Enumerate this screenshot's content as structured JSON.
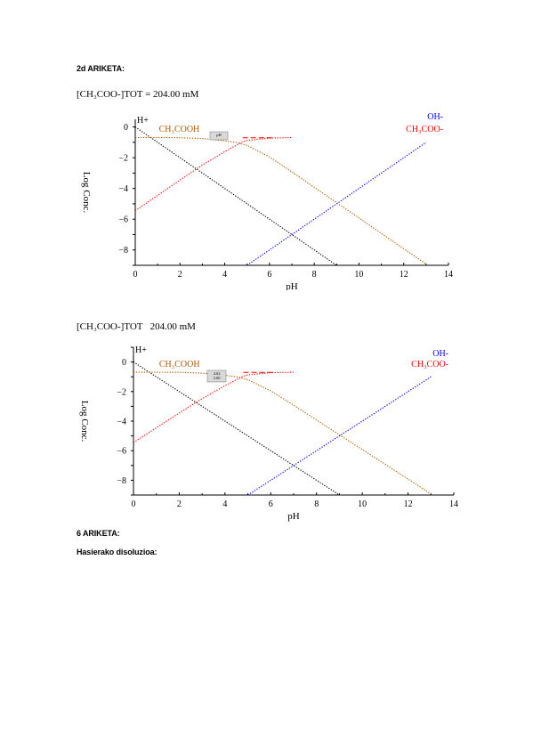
{
  "headings": {
    "section_2d": "2d ARIKETA:",
    "section_6": "6 ARIKETA:",
    "initial_solution": "Hasierako disoluzioa:"
  },
  "charts_text": [
    {
      "concentration_label": "[CH₃COO-]TOT = 204.00 mM",
      "marker_box_lines": [
        "pH"
      ]
    },
    {
      "concentration_label": "[CH₃COO-]TOT   204.00 mM",
      "marker_box_lines": [
        "4.62",
        "3.00"
      ]
    }
  ],
  "chart_data": [
    {
      "type": "line",
      "title": "",
      "xlabel": "pH",
      "ylabel": "Log Conc.",
      "xlim": [
        0,
        14
      ],
      "ylim": [
        -9,
        0.5
      ],
      "x_ticks": [
        0,
        2,
        4,
        6,
        8,
        10,
        12,
        14
      ],
      "y_ticks": [
        0,
        -2,
        -4,
        -6,
        -8
      ],
      "series": [
        {
          "name": "H+",
          "color": "#000000",
          "x": [
            0,
            9
          ],
          "y": [
            0,
            -9
          ]
        },
        {
          "name": "OH-",
          "color": "#0000ff",
          "x": [
            5,
            13
          ],
          "y": [
            -9,
            -1
          ]
        },
        {
          "name": "CH₃COOH",
          "color": "#b35900",
          "x": [
            0,
            1,
            2,
            3,
            4,
            4.5,
            5,
            6,
            7,
            8,
            9,
            10,
            11,
            12,
            13
          ],
          "y": [
            -0.69,
            -0.69,
            -0.7,
            -0.75,
            -0.9,
            -1.0,
            -1.2,
            -1.95,
            -2.92,
            -3.92,
            -4.92,
            -5.92,
            -6.92,
            -7.92,
            -8.92
          ]
        },
        {
          "name": "CH₃COO-",
          "color": "#ff0000",
          "x": [
            0,
            1,
            2,
            3,
            4,
            4.75,
            5,
            6,
            7
          ],
          "y": [
            -5.45,
            -4.45,
            -3.45,
            -2.48,
            -1.6,
            -1.0,
            -0.87,
            -0.72,
            -0.69
          ]
        }
      ],
      "annotations": [
        "H+",
        "OH-",
        "CH₃COOH",
        "CH₃COO-"
      ]
    },
    {
      "type": "line",
      "title": "",
      "xlabel": "pH",
      "ylabel": "Log Conc.",
      "xlim": [
        0,
        14
      ],
      "ylim": [
        -9,
        1
      ],
      "x_ticks": [
        0,
        2,
        4,
        6,
        8,
        10,
        12,
        14
      ],
      "y_ticks": [
        0,
        -2,
        -4,
        -6,
        -8
      ],
      "series": [
        {
          "name": "H+",
          "color": "#000000",
          "x": [
            0,
            9
          ],
          "y": [
            0,
            -9
          ]
        },
        {
          "name": "OH-",
          "color": "#0000ff",
          "x": [
            5,
            13
          ],
          "y": [
            -9,
            -1
          ]
        },
        {
          "name": "CH₃COOH",
          "color": "#b35900",
          "x": [
            0,
            1,
            2,
            3,
            4,
            4.5,
            5,
            6,
            7,
            8,
            9,
            10,
            11,
            12,
            13
          ],
          "y": [
            -0.69,
            -0.69,
            -0.7,
            -0.75,
            -0.9,
            -1.0,
            -1.2,
            -1.95,
            -2.92,
            -3.92,
            -4.92,
            -5.92,
            -6.92,
            -7.92,
            -8.92
          ]
        },
        {
          "name": "CH₃COO-",
          "color": "#ff0000",
          "x": [
            0,
            1,
            2,
            3,
            4,
            4.75,
            5,
            6,
            7
          ],
          "y": [
            -5.45,
            -4.45,
            -3.45,
            -2.48,
            -1.6,
            -1.0,
            -0.87,
            -0.72,
            -0.69
          ]
        }
      ],
      "annotations": [
        "H+",
        "OH-",
        "CH₃COOH",
        "CH₃COO-"
      ]
    }
  ]
}
